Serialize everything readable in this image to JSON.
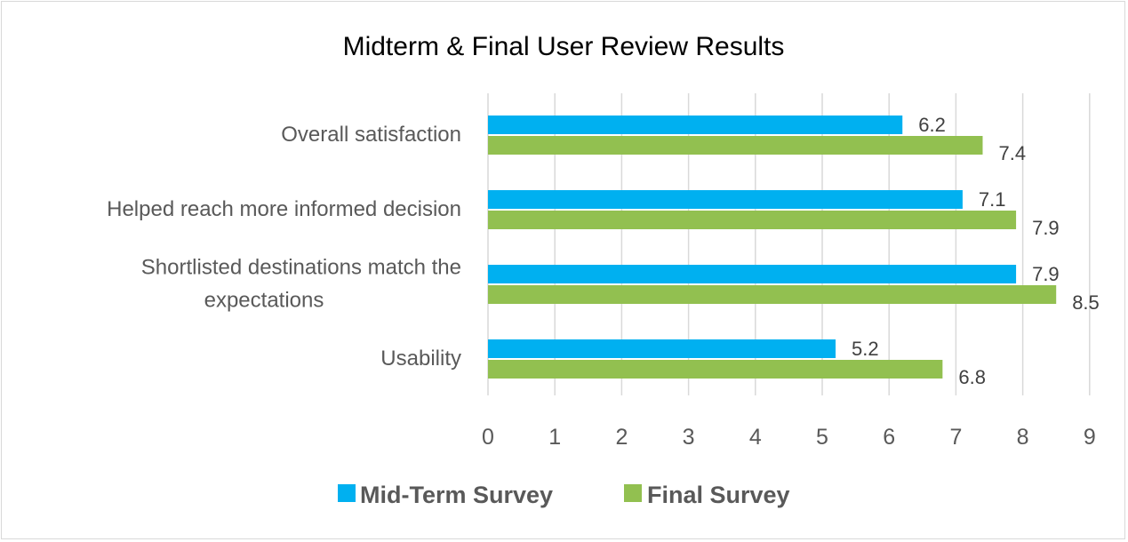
{
  "chart_data": {
    "type": "bar",
    "orientation": "horizontal",
    "title": "Midterm & Final User Review Results",
    "categories": [
      [
        "Overall satisfaction"
      ],
      [
        "Helped reach more informed decision"
      ],
      [
        "Shortlisted destinations match the",
        "expectations"
      ],
      [
        "Usability"
      ]
    ],
    "series": [
      {
        "name": "Mid-Term Survey",
        "color": "#00b0f0",
        "values": [
          6.2,
          7.1,
          7.9,
          5.2
        ]
      },
      {
        "name": "Final Survey",
        "color": "#92c050",
        "values": [
          7.4,
          7.9,
          8.5,
          6.8
        ]
      }
    ],
    "xlim": [
      0,
      9
    ],
    "xticks": [
      "0",
      "1",
      "2",
      "3",
      "4",
      "5",
      "6",
      "7",
      "8",
      "9"
    ],
    "grid": true,
    "legend_position": "bottom"
  }
}
